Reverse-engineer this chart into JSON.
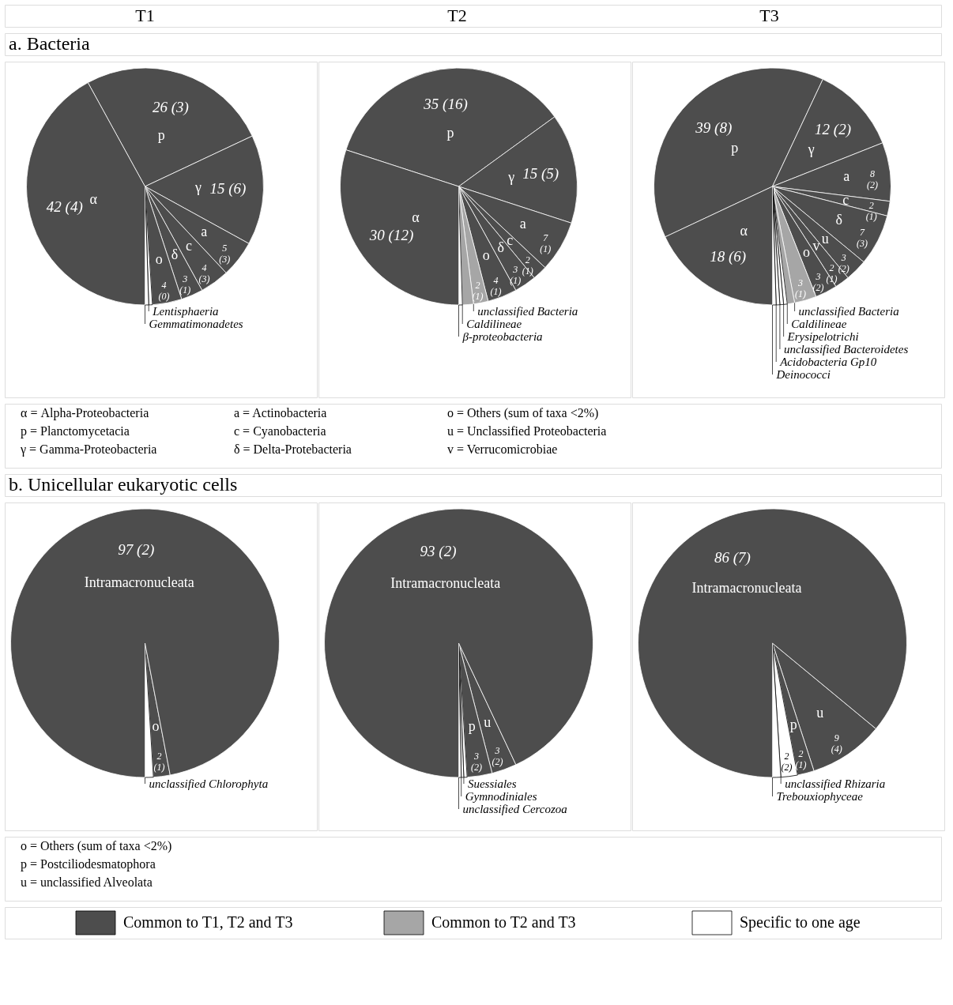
{
  "chart_data": [
    {
      "type": "pie",
      "title": "T1",
      "subtitle": "a. Bacteria",
      "categories": [
        "p",
        "γ",
        "a",
        "c",
        "δ",
        "o",
        "Lentisphaeria",
        "Gemmatimonadetes",
        "α"
      ],
      "values": [
        26,
        15,
        5,
        4,
        3,
        4,
        0.5,
        0.5,
        42
      ],
      "colors": [
        "#4d4d4d",
        "#4d4d4d",
        "#4d4d4d",
        "#4d4d4d",
        "#4d4d4d",
        "#4d4d4d",
        "#ffffff",
        "#ffffff",
        "#4d4d4d"
      ],
      "value_labels": [
        "26 (3)",
        "15 (6)",
        "5 (3)",
        "4 (3)",
        "3 (1)",
        "4 (0)",
        null,
        null,
        "42 (4)"
      ],
      "annotations": [
        "α = Alpha-Proteobacteria",
        "p = Planctomycetacia",
        "γ = Gamma-Proteobacteria",
        "a = Actinobacteria",
        "c = Cyanobacteria",
        "δ = Delta-Protebacteria",
        "o = Others (sum of taxa <2%)",
        "u = Unclassified Proteobacteria",
        "v = Verrucomicrobiae"
      ]
    },
    {
      "type": "pie",
      "title": "T2",
      "categories": [
        "p",
        "γ",
        "a",
        "c",
        "δ",
        "o",
        "unclassified Bacteria",
        "Caldilineae",
        "β-proteobacteria",
        "α"
      ],
      "values": [
        35,
        15,
        7,
        2,
        3,
        4,
        2,
        1.5,
        0.5,
        30
      ],
      "colors": [
        "#4d4d4d",
        "#4d4d4d",
        "#4d4d4d",
        "#4d4d4d",
        "#4d4d4d",
        "#4d4d4d",
        "#a6a6a6",
        "#a6a6a6",
        "#ffffff",
        "#4d4d4d"
      ],
      "value_labels": [
        "35 (16)",
        "15 (5)",
        "7 (1)",
        "2 (1)",
        "3 (1)",
        "4 (1)",
        "2 (1)",
        null,
        null,
        "30 (12)"
      ]
    },
    {
      "type": "pie",
      "title": "T3",
      "categories": [
        "p",
        "γ",
        "a",
        "c",
        "δ",
        "u",
        "v",
        "o",
        "unclassified Bacteria",
        "Caldilineae",
        "Erysipelotrichi",
        "unclassified Bacteroidetes",
        "Acidobacteria Gp10",
        "Deinococci",
        "α"
      ],
      "values": [
        39,
        12,
        8,
        2,
        7,
        3,
        2,
        3,
        3,
        1,
        0.5,
        0.5,
        0.5,
        0.5,
        18
      ],
      "colors": [
        "#4d4d4d",
        "#4d4d4d",
        "#4d4d4d",
        "#4d4d4d",
        "#4d4d4d",
        "#4d4d4d",
        "#4d4d4d",
        "#4d4d4d",
        "#a6a6a6",
        "#a6a6a6",
        "#ffffff",
        "#ffffff",
        "#ffffff",
        "#ffffff",
        "#4d4d4d"
      ],
      "value_labels": [
        "39 (8)",
        "12 (2)",
        "8 (2)",
        "2 (1)",
        "7 (3)",
        "3 (2)",
        "2 (1)",
        "3 (2)",
        "3 (1)",
        null,
        null,
        null,
        null,
        null,
        "18 (6)"
      ]
    },
    {
      "type": "pie",
      "subtitle": "b. Unicellular eukaryotic cells",
      "categories": [
        "o",
        "unclassified Chlorophyta",
        "Intramacronucleata"
      ],
      "values": [
        2,
        1,
        97
      ],
      "colors": [
        "#4d4d4d",
        "#ffffff",
        "#4d4d4d"
      ],
      "value_labels": [
        "2 (1)",
        null,
        "97 (2)"
      ],
      "annotations": [
        "o = Others (sum of taxa <2%)",
        "p = Postciliodesmatophora",
        "u = unclassified Alveolata"
      ]
    },
    {
      "type": "pie",
      "categories": [
        "u",
        "p",
        "Suessiales",
        "Gymnodiniales",
        "unclassified Cercozoa",
        "Intramacronucleata"
      ],
      "values": [
        3,
        3,
        0.4,
        0.3,
        0.3,
        93
      ],
      "colors": [
        "#4d4d4d",
        "#4d4d4d",
        "#ffffff",
        "#ffffff",
        "#ffffff",
        "#4d4d4d"
      ],
      "value_labels": [
        "3 (2)",
        "3 (2)",
        null,
        null,
        null,
        "93 (2)"
      ]
    },
    {
      "type": "pie",
      "categories": [
        "u",
        "p",
        "unclassified Rhizaria",
        "Trebouxiophyceae",
        "Intramacronucleata"
      ],
      "values": [
        9,
        2,
        2,
        1,
        86
      ],
      "colors": [
        "#4d4d4d",
        "#4d4d4d",
        "#ffffff",
        "#ffffff",
        "#4d4d4d"
      ],
      "value_labels": [
        "9 (4)",
        "2 (1)",
        "2 (2)",
        null,
        "86 (7)"
      ]
    },
    {
      "type": "other",
      "categories": [
        "Common to T1, T2 and T3",
        "Common to T2 and T3",
        "Specific to one age"
      ],
      "colors": [
        "#4d4d4d",
        "#a6a6a6",
        "#ffffff"
      ]
    }
  ]
}
